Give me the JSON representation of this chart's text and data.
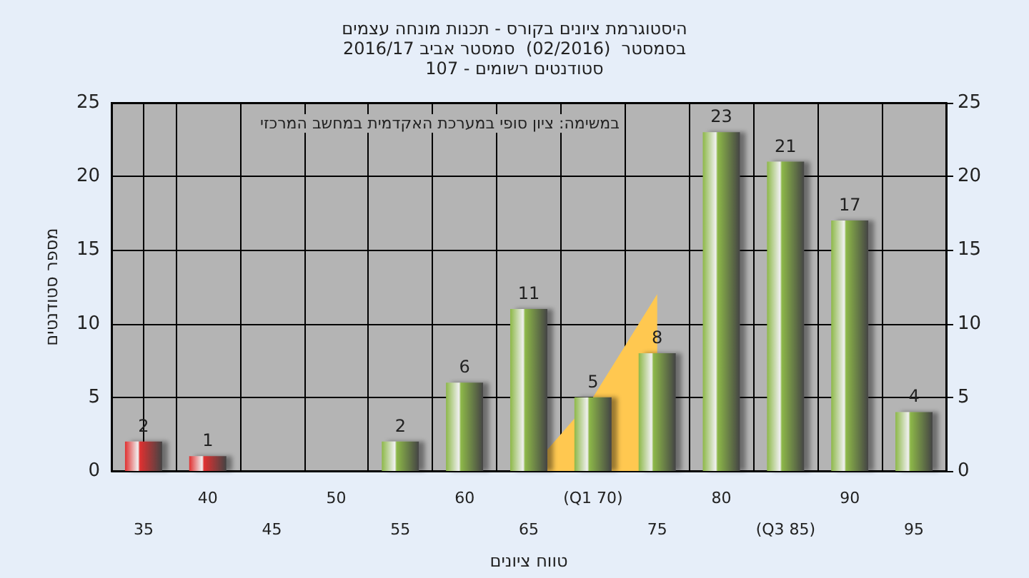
{
  "chart_data": {
    "type": "bar",
    "title": "היסטוגרמת ציונים בקורס - תכנות מונחה עצמים",
    "subtitle": "בסמסטר  (02/2016)  סמסטר אביב 2016/17\nסטודנטים רשומים - 107",
    "xlabel": "טווח ציונים",
    "ylabel": "מספר סטודנטים",
    "annotations": [
      "במשימה: ציון סופי במערכת האקדמית במחשב המרכזי"
    ],
    "categories": [
      "35",
      "40",
      "45",
      "50",
      "55",
      "60",
      "65",
      "(Q1 70)",
      "75",
      "80",
      "(Q3 85)",
      "90",
      "95"
    ],
    "series": [
      {
        "type": "area",
        "color": "#ffc850",
        "values": [
          null,
          null,
          null,
          null,
          null,
          null,
          0,
          5,
          12,
          null,
          null,
          null,
          null
        ]
      },
      {
        "colors": [
          "#e03030",
          "#e03030",
          "#8db848",
          "#8db848",
          "#8db848",
          "#8db848",
          "#8db848",
          "#8db848",
          "#8db848",
          "#8db848",
          "#8db848",
          "#8db848",
          "#8db848"
        ],
        "values": [
          2,
          1,
          0,
          0,
          2,
          6,
          11,
          5,
          8,
          23,
          21,
          17,
          4
        ],
        "value_labels": [
          "2",
          "1",
          null,
          null,
          "2",
          "6",
          "11",
          "5",
          "8",
          "23",
          "21",
          "17",
          "4"
        ]
      }
    ],
    "ylim": [
      0,
      25
    ],
    "yticks": [
      0,
      5,
      10,
      15,
      20,
      25
    ],
    "y2lim": [
      0,
      25
    ],
    "y2ticks": [
      0,
      5,
      10,
      15,
      20,
      25
    ],
    "grid": true
  }
}
